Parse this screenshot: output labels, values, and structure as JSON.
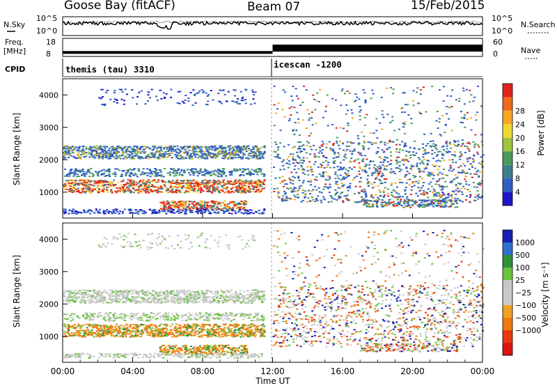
{
  "header": {
    "station": "Goose Bay (fitACF)",
    "beam": "Beam 07",
    "date": "15/Feb/2015"
  },
  "left_labels": {
    "nsky": "N.Sky",
    "freq_line1": "Freq.",
    "freq_line2": "[MHz]",
    "cpid": "CPID"
  },
  "right_labels": {
    "nsearch": "N.Search",
    "nave": "Nave"
  },
  "mode_labels": {
    "first": "themis (tau) 3310",
    "second": "icescan -1200"
  },
  "chart_data": [
    {
      "type": "line",
      "name": "noise-panel",
      "left_axis": {
        "label": "N.Sky",
        "ticks": [
          "10^5",
          "10^0"
        ]
      },
      "right_axis": {
        "label": "N.Search",
        "ticks": [
          "10^5",
          "10^0"
        ]
      },
      "x": {
        "range_hours": [
          0,
          24
        ]
      }
    },
    {
      "type": "line",
      "name": "frequency-panel",
      "left_axis": {
        "label": "Freq. [MHz]",
        "ticks": [
          8,
          18
        ],
        "range": [
          8,
          18
        ]
      },
      "right_axis": {
        "label": "Nave",
        "ticks": [
          0,
          60
        ],
        "range": [
          0,
          60
        ]
      },
      "series": [
        {
          "segments": [
            {
              "x": [
                0,
                12
              ],
              "freq": 10.2
            },
            {
              "x": [
                12,
                24
              ],
              "freq": 12.6
            }
          ]
        }
      ]
    },
    {
      "type": "heatmap",
      "name": "power-panel",
      "ylabel": "Slant Range [km]",
      "yticks": [
        1000,
        2000,
        3000,
        4000
      ],
      "ylim": [
        200,
        4500
      ],
      "xlim": [
        0,
        24
      ],
      "colorbar": {
        "label": "Power [dB]",
        "ticks": [
          "4",
          "8",
          "12",
          "16",
          "20",
          "24",
          "28"
        ],
        "colors": [
          "#1f16c8",
          "#2f5ec4",
          "#3f7f8c",
          "#4a9a5a",
          "#9fc43c",
          "#f0d832",
          "#f5a623",
          "#ee6a1d",
          "#e1231a"
        ]
      }
    },
    {
      "type": "heatmap",
      "name": "velocity-panel",
      "ylabel": "Slant Range [km]",
      "yticks": [
        1000,
        2000,
        3000,
        4000
      ],
      "ylim": [
        200,
        4500
      ],
      "xlim": [
        0,
        24
      ],
      "xlabel": "Time UT",
      "xticks": [
        "00:00",
        "04:00",
        "08:00",
        "12:00",
        "16:00",
        "20:00",
        "00:00"
      ],
      "colorbar": {
        "label": "Velocity [m s⁻¹]",
        "ticks": [
          "1000",
          "500",
          "100",
          "25",
          "−25",
          "−100",
          "−500",
          "−1000"
        ],
        "colors": [
          "#1a1fb4",
          "#2f6fd0",
          "#2f8f3a",
          "#6bc43f",
          "#c8c8c8",
          "#c8c8c8",
          "#f0a020",
          "#f07a10",
          "#e8380e",
          "#dc140c"
        ]
      }
    }
  ]
}
